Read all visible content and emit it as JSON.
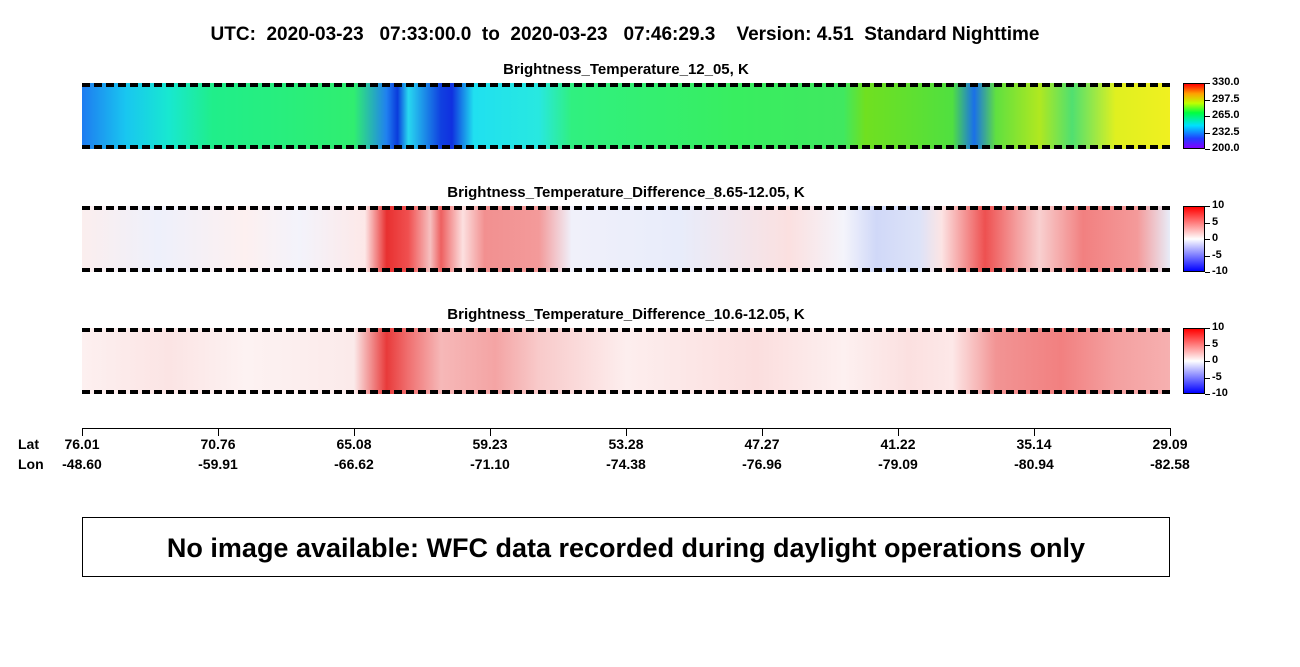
{
  "header": {
    "title": "UTC:  2020-03-23   07:33:00.0  to  2020-03-23   07:46:29.3    Version: 4.51  Standard Nighttime"
  },
  "panels": [
    {
      "title": "Brightness_Temperature_12_05, K",
      "colorbar_ticks": [
        "330.0",
        "297.5",
        "265.0",
        "232.5",
        "200.0"
      ]
    },
    {
      "title": "Brightness_Temperature_Difference_8.65-12.05, K",
      "colorbar_ticks": [
        "10",
        "5",
        "0",
        "-5",
        "-10"
      ]
    },
    {
      "title": "Brightness_Temperature_Difference_10.6-12.05, K",
      "colorbar_ticks": [
        "10",
        "5",
        "0",
        "-5",
        "-10"
      ]
    }
  ],
  "axis": {
    "lat_label": "Lat",
    "lon_label": "Lon",
    "lat": [
      "76.01",
      "70.76",
      "65.08",
      "59.23",
      "53.28",
      "47.27",
      "41.22",
      "35.14",
      "29.09"
    ],
    "lon": [
      "-48.60",
      "-59.91",
      "-66.62",
      "-71.10",
      "-74.38",
      "-76.96",
      "-79.09",
      "-80.94",
      "-82.58"
    ]
  },
  "message": "No image available: WFC data recorded during daylight operations only"
}
